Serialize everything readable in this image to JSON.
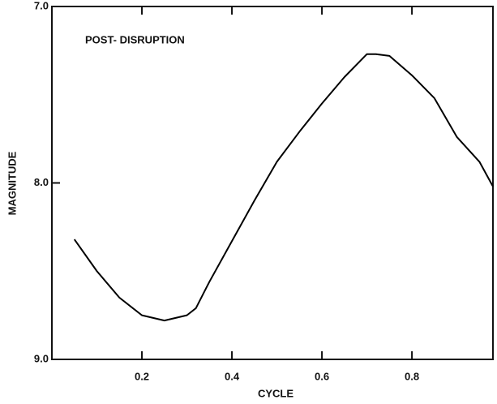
{
  "chart_data": {
    "type": "line",
    "annotation": "POST- DISRUPTION",
    "xlabel": "CYCLE",
    "ylabel": "MAGNITUDE",
    "x": [
      0.05,
      0.1,
      0.15,
      0.2,
      0.25,
      0.3,
      0.32,
      0.35,
      0.4,
      0.45,
      0.5,
      0.55,
      0.6,
      0.65,
      0.7,
      0.72,
      0.75,
      0.8,
      0.85,
      0.9,
      0.95,
      0.98
    ],
    "values": [
      8.32,
      8.5,
      8.65,
      8.75,
      8.78,
      8.75,
      8.71,
      8.56,
      8.33,
      8.1,
      7.88,
      7.71,
      7.55,
      7.4,
      7.27,
      7.27,
      7.28,
      7.39,
      7.52,
      7.74,
      7.88,
      8.02
    ],
    "color": "#000000",
    "xlim": [
      0,
      0.98
    ],
    "ylim": [
      9.0,
      7.0
    ],
    "xticks": [
      0.2,
      0.4,
      0.6,
      0.8
    ],
    "yticks": [
      {
        "value": 7,
        "label": "7.0"
      },
      {
        "value": 8,
        "label": "8.0"
      },
      {
        "value": 9,
        "label": "9.0"
      }
    ]
  }
}
